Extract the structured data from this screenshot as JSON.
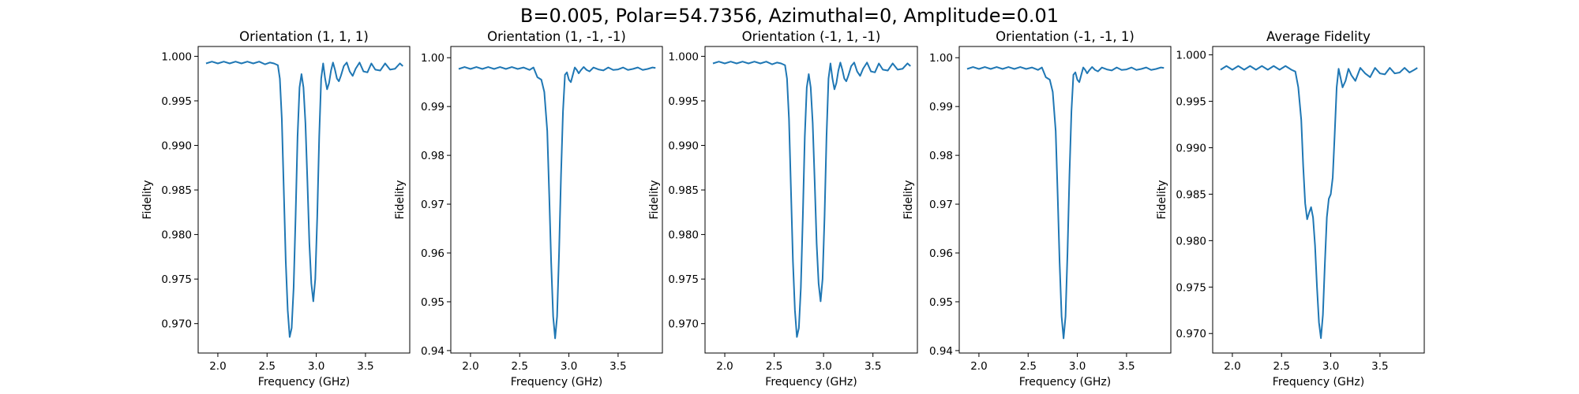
{
  "figure": {
    "suptitle": "B=0.005, Polar=54.7356, Azimuthal=0, Amplitude=0.01"
  },
  "chart_data": [
    {
      "type": "line",
      "title": "Orientation (1, 1, 1)",
      "xlabel": "Frequency (GHz)",
      "ylabel": "Fidelity",
      "xlim": [
        1.8,
        3.95
      ],
      "ylim": [
        0.9667,
        1.0011
      ],
      "xticks": [
        2.0,
        2.5,
        3.0,
        3.5
      ],
      "xtick_labels": [
        "2.0",
        "2.5",
        "3.0",
        "3.5"
      ],
      "yticks": [
        0.97,
        0.975,
        0.98,
        0.985,
        0.99,
        0.995,
        1.0
      ],
      "ytick_labels": [
        "0.970",
        "0.975",
        "0.980",
        "0.985",
        "0.990",
        "0.995",
        "1.000"
      ],
      "grid": false,
      "series": [
        {
          "color": "#1f77b4",
          "x": [
            1.88,
            1.94,
            2.0,
            2.06,
            2.12,
            2.18,
            2.24,
            2.3,
            2.36,
            2.42,
            2.48,
            2.53,
            2.57,
            2.61,
            2.63,
            2.65,
            2.67,
            2.69,
            2.71,
            2.73,
            2.75,
            2.77,
            2.79,
            2.81,
            2.83,
            2.85,
            2.87,
            2.89,
            2.91,
            2.93,
            2.95,
            2.97,
            2.99,
            3.01,
            3.03,
            3.05,
            3.07,
            3.09,
            3.11,
            3.13,
            3.15,
            3.17,
            3.19,
            3.21,
            3.23,
            3.25,
            3.28,
            3.31,
            3.34,
            3.37,
            3.4,
            3.44,
            3.48,
            3.52,
            3.56,
            3.6,
            3.65,
            3.7,
            3.75,
            3.8,
            3.85,
            3.88
          ],
          "y": [
            0.9992,
            0.9994,
            0.9992,
            0.9994,
            0.9992,
            0.9994,
            0.9992,
            0.9994,
            0.9992,
            0.9994,
            0.9991,
            0.9993,
            0.9992,
            0.999,
            0.9975,
            0.993,
            0.985,
            0.977,
            0.9715,
            0.9685,
            0.9695,
            0.974,
            0.982,
            0.991,
            0.9965,
            0.998,
            0.9965,
            0.9925,
            0.986,
            0.979,
            0.9745,
            0.9725,
            0.975,
            0.982,
            0.991,
            0.9975,
            0.9992,
            0.9975,
            0.9963,
            0.997,
            0.9984,
            0.9993,
            0.9985,
            0.9975,
            0.9972,
            0.9978,
            0.9989,
            0.9993,
            0.9983,
            0.9978,
            0.9986,
            0.9993,
            0.9983,
            0.9982,
            0.9992,
            0.9985,
            0.9984,
            0.9992,
            0.9985,
            0.9986,
            0.9992,
            0.9989
          ]
        }
      ]
    },
    {
      "type": "line",
      "title": "Orientation (1, -1, -1)",
      "xlabel": "Frequency (GHz)",
      "ylabel": "Fidelity",
      "xlim": [
        1.8,
        3.95
      ],
      "ylim": [
        0.9395,
        1.0023
      ],
      "xticks": [
        2.0,
        2.5,
        3.0,
        3.5
      ],
      "xtick_labels": [
        "2.0",
        "2.5",
        "3.0",
        "3.5"
      ],
      "yticks": [
        0.94,
        0.95,
        0.96,
        0.97,
        0.98,
        0.99,
        1.0
      ],
      "ytick_labels": [
        "0.94",
        "0.95",
        "0.96",
        "0.97",
        "0.98",
        "0.99",
        "1.00"
      ],
      "grid": false,
      "series": [
        {
          "color": "#1f77b4",
          "x": [
            1.88,
            1.94,
            2.0,
            2.06,
            2.12,
            2.18,
            2.24,
            2.3,
            2.36,
            2.42,
            2.48,
            2.54,
            2.6,
            2.64,
            2.68,
            2.72,
            2.75,
            2.78,
            2.8,
            2.82,
            2.84,
            2.86,
            2.88,
            2.9,
            2.92,
            2.94,
            2.96,
            2.98,
            3.0,
            3.02,
            3.04,
            3.06,
            3.08,
            3.1,
            3.12,
            3.15,
            3.18,
            3.21,
            3.25,
            3.3,
            3.35,
            3.4,
            3.45,
            3.5,
            3.55,
            3.6,
            3.65,
            3.7,
            3.75,
            3.8,
            3.85,
            3.88
          ],
          "y": [
            0.9977,
            0.9981,
            0.9977,
            0.9981,
            0.9977,
            0.9981,
            0.9977,
            0.9981,
            0.9977,
            0.9981,
            0.9977,
            0.998,
            0.9975,
            0.998,
            0.996,
            0.9955,
            0.993,
            0.985,
            0.972,
            0.958,
            0.947,
            0.9425,
            0.947,
            0.96,
            0.976,
            0.989,
            0.9965,
            0.997,
            0.9955,
            0.995,
            0.9965,
            0.998,
            0.9975,
            0.9968,
            0.9974,
            0.9981,
            0.9975,
            0.9972,
            0.998,
            0.9976,
            0.9974,
            0.998,
            0.9975,
            0.9976,
            0.998,
            0.9975,
            0.9977,
            0.998,
            0.9975,
            0.9977,
            0.998,
            0.9979
          ]
        }
      ]
    },
    {
      "type": "line",
      "title": "Orientation (-1, 1, -1)",
      "xlabel": "Frequency (GHz)",
      "ylabel": "Fidelity",
      "xlim": [
        1.8,
        3.95
      ],
      "ylim": [
        0.9667,
        1.0011
      ],
      "xticks": [
        2.0,
        2.5,
        3.0,
        3.5
      ],
      "xtick_labels": [
        "2.0",
        "2.5",
        "3.0",
        "3.5"
      ],
      "yticks": [
        0.97,
        0.975,
        0.98,
        0.985,
        0.99,
        0.995,
        1.0
      ],
      "ytick_labels": [
        "0.970",
        "0.975",
        "0.980",
        "0.985",
        "0.990",
        "0.995",
        "1.000"
      ],
      "grid": false,
      "series": [
        {
          "color": "#1f77b4",
          "x": [
            1.88,
            1.94,
            2.0,
            2.06,
            2.12,
            2.18,
            2.24,
            2.3,
            2.36,
            2.42,
            2.48,
            2.53,
            2.57,
            2.61,
            2.63,
            2.65,
            2.67,
            2.69,
            2.71,
            2.73,
            2.75,
            2.77,
            2.79,
            2.81,
            2.83,
            2.85,
            2.87,
            2.89,
            2.91,
            2.93,
            2.95,
            2.97,
            2.99,
            3.01,
            3.03,
            3.05,
            3.07,
            3.09,
            3.11,
            3.13,
            3.15,
            3.17,
            3.19,
            3.21,
            3.23,
            3.25,
            3.28,
            3.31,
            3.34,
            3.37,
            3.4,
            3.44,
            3.48,
            3.52,
            3.56,
            3.6,
            3.65,
            3.7,
            3.75,
            3.8,
            3.85,
            3.88
          ],
          "y": [
            0.9992,
            0.9994,
            0.9992,
            0.9994,
            0.9992,
            0.9994,
            0.9992,
            0.9994,
            0.9992,
            0.9994,
            0.9991,
            0.9993,
            0.9992,
            0.999,
            0.9975,
            0.993,
            0.985,
            0.977,
            0.9715,
            0.9685,
            0.9695,
            0.974,
            0.982,
            0.991,
            0.9965,
            0.998,
            0.9965,
            0.9925,
            0.986,
            0.979,
            0.9745,
            0.9725,
            0.975,
            0.982,
            0.991,
            0.9975,
            0.9992,
            0.9975,
            0.9963,
            0.997,
            0.9984,
            0.9993,
            0.9985,
            0.9975,
            0.9972,
            0.9978,
            0.9989,
            0.9993,
            0.9983,
            0.9978,
            0.9986,
            0.9993,
            0.9983,
            0.9982,
            0.9992,
            0.9985,
            0.9984,
            0.9992,
            0.9985,
            0.9986,
            0.9992,
            0.9989
          ]
        }
      ]
    },
    {
      "type": "line",
      "title": "Orientation (-1, -1, 1)",
      "xlabel": "Frequency (GHz)",
      "ylabel": "Fidelity",
      "xlim": [
        1.8,
        3.95
      ],
      "ylim": [
        0.9395,
        1.0023
      ],
      "xticks": [
        2.0,
        2.5,
        3.0,
        3.5
      ],
      "xtick_labels": [
        "2.0",
        "2.5",
        "3.0",
        "3.5"
      ],
      "yticks": [
        0.94,
        0.95,
        0.96,
        0.97,
        0.98,
        0.99,
        1.0
      ],
      "ytick_labels": [
        "0.94",
        "0.95",
        "0.96",
        "0.97",
        "0.98",
        "0.99",
        "1.00"
      ],
      "grid": false,
      "series": [
        {
          "color": "#1f77b4",
          "x": [
            1.88,
            1.94,
            2.0,
            2.06,
            2.12,
            2.18,
            2.24,
            2.3,
            2.36,
            2.42,
            2.48,
            2.54,
            2.6,
            2.64,
            2.68,
            2.72,
            2.75,
            2.78,
            2.8,
            2.82,
            2.84,
            2.86,
            2.88,
            2.9,
            2.92,
            2.94,
            2.96,
            2.98,
            3.0,
            3.02,
            3.04,
            3.06,
            3.08,
            3.1,
            3.12,
            3.15,
            3.18,
            3.21,
            3.25,
            3.3,
            3.35,
            3.4,
            3.45,
            3.5,
            3.55,
            3.6,
            3.65,
            3.7,
            3.75,
            3.8,
            3.85,
            3.88
          ],
          "y": [
            0.9977,
            0.9981,
            0.9977,
            0.9981,
            0.9977,
            0.9981,
            0.9977,
            0.9981,
            0.9977,
            0.9981,
            0.9977,
            0.998,
            0.9975,
            0.998,
            0.996,
            0.9955,
            0.993,
            0.985,
            0.972,
            0.958,
            0.947,
            0.9425,
            0.947,
            0.96,
            0.976,
            0.989,
            0.9965,
            0.997,
            0.9955,
            0.995,
            0.9965,
            0.998,
            0.9975,
            0.9968,
            0.9974,
            0.9981,
            0.9975,
            0.9972,
            0.998,
            0.9976,
            0.9974,
            0.998,
            0.9975,
            0.9976,
            0.998,
            0.9975,
            0.9977,
            0.998,
            0.9975,
            0.9977,
            0.998,
            0.9979
          ]
        }
      ]
    },
    {
      "type": "line",
      "title": "Average Fidelity",
      "xlabel": "Frequency (GHz)",
      "ylabel": "Fidelity",
      "xlim": [
        1.8,
        3.95
      ],
      "ylim": [
        0.9679,
        1.0009
      ],
      "xticks": [
        2.0,
        2.5,
        3.0,
        3.5
      ],
      "xtick_labels": [
        "2.0",
        "2.5",
        "3.0",
        "3.5"
      ],
      "yticks": [
        0.97,
        0.975,
        0.98,
        0.985,
        0.99,
        0.995,
        1.0
      ],
      "ytick_labels": [
        "0.970",
        "0.975",
        "0.980",
        "0.985",
        "0.990",
        "0.995",
        "1.000"
      ],
      "grid": false,
      "series": [
        {
          "color": "#1f77b4",
          "x": [
            1.88,
            1.94,
            2.0,
            2.06,
            2.12,
            2.18,
            2.24,
            2.3,
            2.36,
            2.42,
            2.48,
            2.54,
            2.6,
            2.64,
            2.67,
            2.7,
            2.72,
            2.74,
            2.76,
            2.78,
            2.8,
            2.82,
            2.84,
            2.86,
            2.88,
            2.9,
            2.92,
            2.94,
            2.96,
            2.98,
            3.0,
            3.02,
            3.04,
            3.06,
            3.08,
            3.1,
            3.12,
            3.15,
            3.18,
            3.21,
            3.25,
            3.3,
            3.35,
            3.4,
            3.45,
            3.5,
            3.55,
            3.6,
            3.65,
            3.7,
            3.75,
            3.8,
            3.85,
            3.88
          ],
          "y": [
            0.9984,
            0.9988,
            0.9984,
            0.9988,
            0.9984,
            0.9988,
            0.9984,
            0.9988,
            0.9984,
            0.9988,
            0.9984,
            0.9988,
            0.9984,
            0.9982,
            0.9965,
            0.993,
            0.988,
            0.984,
            0.9823,
            0.983,
            0.9836,
            0.9825,
            0.9795,
            0.975,
            0.9712,
            0.9695,
            0.972,
            0.9775,
            0.9825,
            0.9845,
            0.985,
            0.9868,
            0.9915,
            0.9965,
            0.9985,
            0.9975,
            0.9965,
            0.9972,
            0.9985,
            0.9978,
            0.9972,
            0.9986,
            0.998,
            0.9976,
            0.9986,
            0.998,
            0.9979,
            0.9986,
            0.998,
            0.9981,
            0.9986,
            0.9981,
            0.9984,
            0.9986
          ]
        }
      ]
    }
  ]
}
